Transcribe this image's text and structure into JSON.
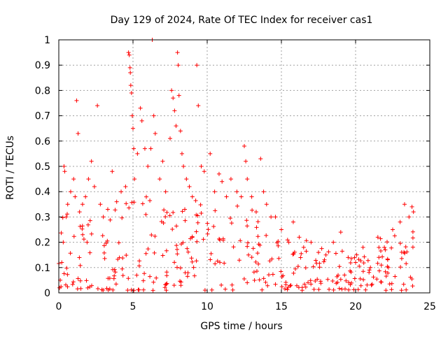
{
  "chart_data": {
    "type": "scatter",
    "title": "Day 129 of 2024, Rate Of TEC Index for receiver cas1",
    "xlabel": "GPS time / hours",
    "ylabel": "ROTI / TECUs",
    "xlim": [
      0,
      25
    ],
    "ylim": [
      0,
      1
    ],
    "x_ticks": [
      0,
      5,
      10,
      15,
      20,
      25
    ],
    "y_ticks": [
      0,
      0.1,
      0.2,
      0.3,
      0.4,
      0.5,
      0.6,
      0.7,
      0.8,
      0.9,
      1
    ],
    "x_tick_labels": [
      "0",
      "5",
      "10",
      "15",
      "20",
      "25"
    ],
    "y_tick_labels": [
      "0",
      "0.1",
      "0.2",
      "0.3",
      "0.4",
      "0.5",
      "0.6",
      "0.7",
      "0.8",
      "0.9",
      "1"
    ],
    "grid": true,
    "marker": "plus",
    "color": "#ff0000",
    "series": [
      {
        "values": [
          [
            0.05,
            0.02
          ],
          [
            0.1,
            0.05
          ],
          [
            0.2,
            0.12
          ],
          [
            0.3,
            0.2
          ],
          [
            0.35,
            0.5
          ],
          [
            0.4,
            0.48
          ],
          [
            0.5,
            0.3
          ],
          [
            0.6,
            0.35
          ],
          [
            0.8,
            0.4
          ],
          [
            1.0,
            0.45
          ],
          [
            1.1,
            0.38
          ],
          [
            1.2,
            0.76
          ],
          [
            1.3,
            0.63
          ],
          [
            1.4,
            0.32
          ],
          [
            1.6,
            0.35
          ],
          [
            1.8,
            0.38
          ],
          [
            2.0,
            0.45
          ],
          [
            2.2,
            0.52
          ],
          [
            2.4,
            0.42
          ],
          [
            2.6,
            0.74
          ],
          [
            2.8,
            0.35
          ],
          [
            3.0,
            0.3
          ],
          [
            3.3,
            0.33
          ],
          [
            3.6,
            0.48
          ],
          [
            3.9,
            0.36
          ],
          [
            4.2,
            0.4
          ],
          [
            4.5,
            0.42
          ],
          [
            4.7,
            0.95
          ],
          [
            4.75,
            0.94
          ],
          [
            4.8,
            0.89
          ],
          [
            4.82,
            0.87
          ],
          [
            4.85,
            0.82
          ],
          [
            4.9,
            0.79
          ],
          [
            4.95,
            0.7
          ],
          [
            5.0,
            0.65
          ],
          [
            5.05,
            0.57
          ],
          [
            5.1,
            0.45
          ],
          [
            5.3,
            0.55
          ],
          [
            5.5,
            0.73
          ],
          [
            5.6,
            0.68
          ],
          [
            5.8,
            0.57
          ],
          [
            6.0,
            0.5
          ],
          [
            6.2,
            0.57
          ],
          [
            6.3,
            1.0
          ],
          [
            6.4,
            0.7
          ],
          [
            6.5,
            0.63
          ],
          [
            6.8,
            0.45
          ],
          [
            7.0,
            0.52
          ],
          [
            7.2,
            0.4
          ],
          [
            7.5,
            0.61
          ],
          [
            7.6,
            0.8
          ],
          [
            7.7,
            0.77
          ],
          [
            7.8,
            0.72
          ],
          [
            7.9,
            0.66
          ],
          [
            8.0,
            0.95
          ],
          [
            8.05,
            0.9
          ],
          [
            8.1,
            0.78
          ],
          [
            8.2,
            0.64
          ],
          [
            8.3,
            0.55
          ],
          [
            8.4,
            0.5
          ],
          [
            8.6,
            0.45
          ],
          [
            8.8,
            0.42
          ],
          [
            9.0,
            0.38
          ],
          [
            9.3,
            0.9
          ],
          [
            9.4,
            0.74
          ],
          [
            9.6,
            0.5
          ],
          [
            9.8,
            0.48
          ],
          [
            10.2,
            0.55
          ],
          [
            10.5,
            0.4
          ],
          [
            10.8,
            0.47
          ],
          [
            11.0,
            0.44
          ],
          [
            11.3,
            0.38
          ],
          [
            11.6,
            0.45
          ],
          [
            12.0,
            0.4
          ],
          [
            12.3,
            0.38
          ],
          [
            12.5,
            0.58
          ],
          [
            12.6,
            0.52
          ],
          [
            12.7,
            0.45
          ],
          [
            13.0,
            0.38
          ],
          [
            13.3,
            0.32
          ],
          [
            13.6,
            0.53
          ],
          [
            13.8,
            0.4
          ],
          [
            14.0,
            0.35
          ],
          [
            14.3,
            0.3
          ],
          [
            14.6,
            0.3
          ],
          [
            15.0,
            0.25
          ],
          [
            15.5,
            0.2
          ],
          [
            15.8,
            0.28
          ],
          [
            16.2,
            0.22
          ],
          [
            16.5,
            0.18
          ],
          [
            17.0,
            0.2
          ],
          [
            17.5,
            0.16
          ],
          [
            18.0,
            0.15
          ],
          [
            18.5,
            0.2
          ],
          [
            19.0,
            0.24
          ],
          [
            19.5,
            0.14
          ],
          [
            20.0,
            0.12
          ],
          [
            20.5,
            0.18
          ],
          [
            21.0,
            0.1
          ],
          [
            21.5,
            0.22
          ],
          [
            22.0,
            0.17
          ],
          [
            22.5,
            0.25
          ],
          [
            23.0,
            0.28
          ],
          [
            23.3,
            0.35
          ],
          [
            23.6,
            0.3
          ],
          [
            23.8,
            0.34
          ],
          [
            23.9,
            0.32
          ]
        ]
      }
    ]
  }
}
